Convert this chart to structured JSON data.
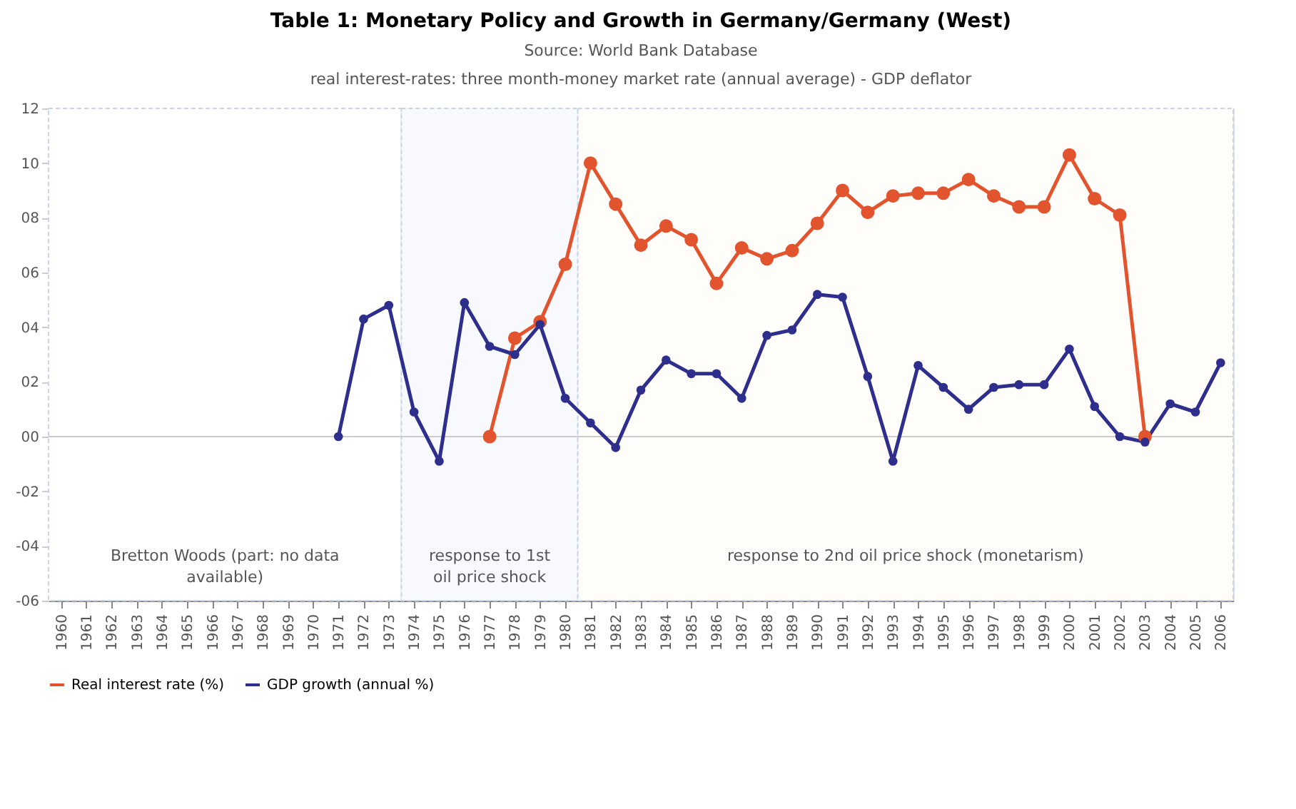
{
  "chart_data": {
    "type": "line",
    "title": "Table 1: Monetary Policy and Growth in Germany/Germany (West)",
    "subtitle": "Source: World Bank Database",
    "annotations": [
      "real interest-rates: three month-money market rate (annual average) - GDP deflator"
    ],
    "categories": [
      "1960",
      "1961",
      "1962",
      "1963",
      "1964",
      "1965",
      "1966",
      "1967",
      "1968",
      "1969",
      "1970",
      "1971",
      "1972",
      "1973",
      "1974",
      "1975",
      "1976",
      "1977",
      "1978",
      "1979",
      "1980",
      "1981",
      "1982",
      "1983",
      "1984",
      "1985",
      "1986",
      "1987",
      "1988",
      "1989",
      "1990",
      "1991",
      "1992",
      "1993",
      "1994",
      "1995",
      "1996",
      "1997",
      "1998",
      "1999",
      "2000",
      "2001",
      "2002",
      "2003",
      "2004",
      "2005",
      "2006"
    ],
    "series": [
      {
        "name": "Real interest rate (%)",
        "color": "#e2542e",
        "values": [
          null,
          null,
          null,
          null,
          null,
          null,
          null,
          null,
          null,
          null,
          null,
          null,
          null,
          null,
          null,
          null,
          null,
          0.0,
          3.6,
          4.2,
          6.3,
          10.0,
          8.5,
          7.0,
          7.7,
          7.2,
          5.6,
          6.9,
          6.5,
          6.8,
          7.8,
          9.0,
          8.2,
          8.8,
          8.9,
          8.9,
          9.4,
          8.8,
          8.4,
          8.4,
          10.3,
          8.7,
          8.1,
          0.0,
          null,
          null,
          null
        ]
      },
      {
        "name": "GDP growth (annual %)",
        "color": "#2e2e8c",
        "values": [
          null,
          null,
          null,
          null,
          null,
          null,
          null,
          null,
          null,
          null,
          null,
          0.0,
          4.3,
          4.8,
          0.9,
          -0.9,
          4.9,
          3.3,
          3.0,
          4.1,
          1.4,
          0.5,
          -0.4,
          1.7,
          2.8,
          2.3,
          2.3,
          1.4,
          3.7,
          3.9,
          5.2,
          5.1,
          2.2,
          -0.9,
          2.6,
          1.8,
          1.0,
          1.8,
          1.9,
          1.9,
          3.2,
          1.1,
          0.0,
          -0.2,
          1.2,
          0.9,
          2.7
        ]
      }
    ],
    "ylim": [
      -6,
      12
    ],
    "yticks": [
      {
        "value": -6,
        "label": "-06"
      },
      {
        "value": -4,
        "label": "-04"
      },
      {
        "value": -2,
        "label": "-02"
      },
      {
        "value": 0,
        "label": "00"
      },
      {
        "value": 2,
        "label": "02"
      },
      {
        "value": 4,
        "label": "04"
      },
      {
        "value": 6,
        "label": "06"
      },
      {
        "value": 8,
        "label": "08"
      },
      {
        "value": 10,
        "label": "10"
      },
      {
        "value": 12,
        "label": "12"
      }
    ],
    "ref_lines": [
      {
        "axis": "y",
        "value": 0,
        "color": "#cccccc"
      }
    ],
    "bands": [
      {
        "axis": "x",
        "from": "1960",
        "to": "1973",
        "label": "Bretton Woods (part: no data available)",
        "color": "#ffffff"
      },
      {
        "axis": "x",
        "from": "1974",
        "to": "1980",
        "label": "response to 1st oil price shock",
        "color": "#f7f9fd"
      },
      {
        "axis": "x",
        "from": "1981",
        "to": "2006",
        "label": "response to 2nd oil price shock (monetarism)",
        "color": "#fffdfa"
      }
    ],
    "marker": "circle",
    "line_style": "solid",
    "legend": "bottom"
  }
}
